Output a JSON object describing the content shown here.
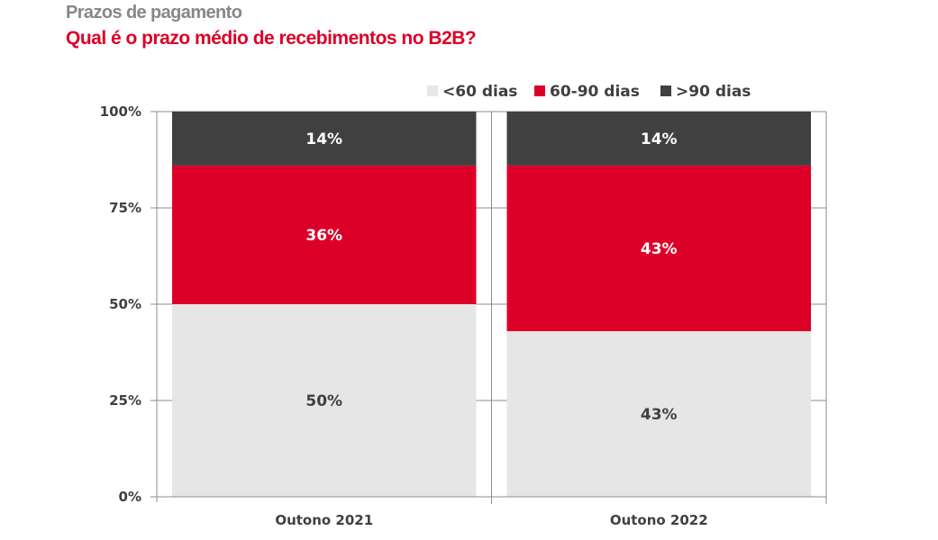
{
  "header": {
    "title": "Prazos de pagamento",
    "subtitle": "Qual é o prazo médio de recebimentos no B2B?"
  },
  "chart_data": {
    "type": "bar",
    "stacked": true,
    "title": "Prazos de pagamento",
    "subtitle": "Qual é o prazo médio de recebimentos no B2B?",
    "xlabel": "",
    "ylabel": "",
    "categories": [
      "Outono 2021",
      "Outono 2022"
    ],
    "series": [
      {
        "name": "<60 dias",
        "color": "#e6e6e6",
        "label_color": "#404040",
        "values": [
          50,
          43
        ]
      },
      {
        "name": "60-90 dias",
        "color": "#dc0028",
        "label_color": "#ffffff",
        "values": [
          36,
          43
        ]
      },
      {
        "name": ">90 dias",
        "color": "#404040",
        "label_color": "#ffffff",
        "values": [
          14,
          14
        ]
      }
    ],
    "value_suffix": "%",
    "ylim": [
      0,
      100
    ],
    "yticks": [
      0,
      25,
      50,
      75,
      100
    ],
    "ytick_labels": [
      "0%",
      "25%",
      "50%",
      "75%",
      "100%"
    ],
    "grid": true,
    "legend_position": "top-right"
  }
}
